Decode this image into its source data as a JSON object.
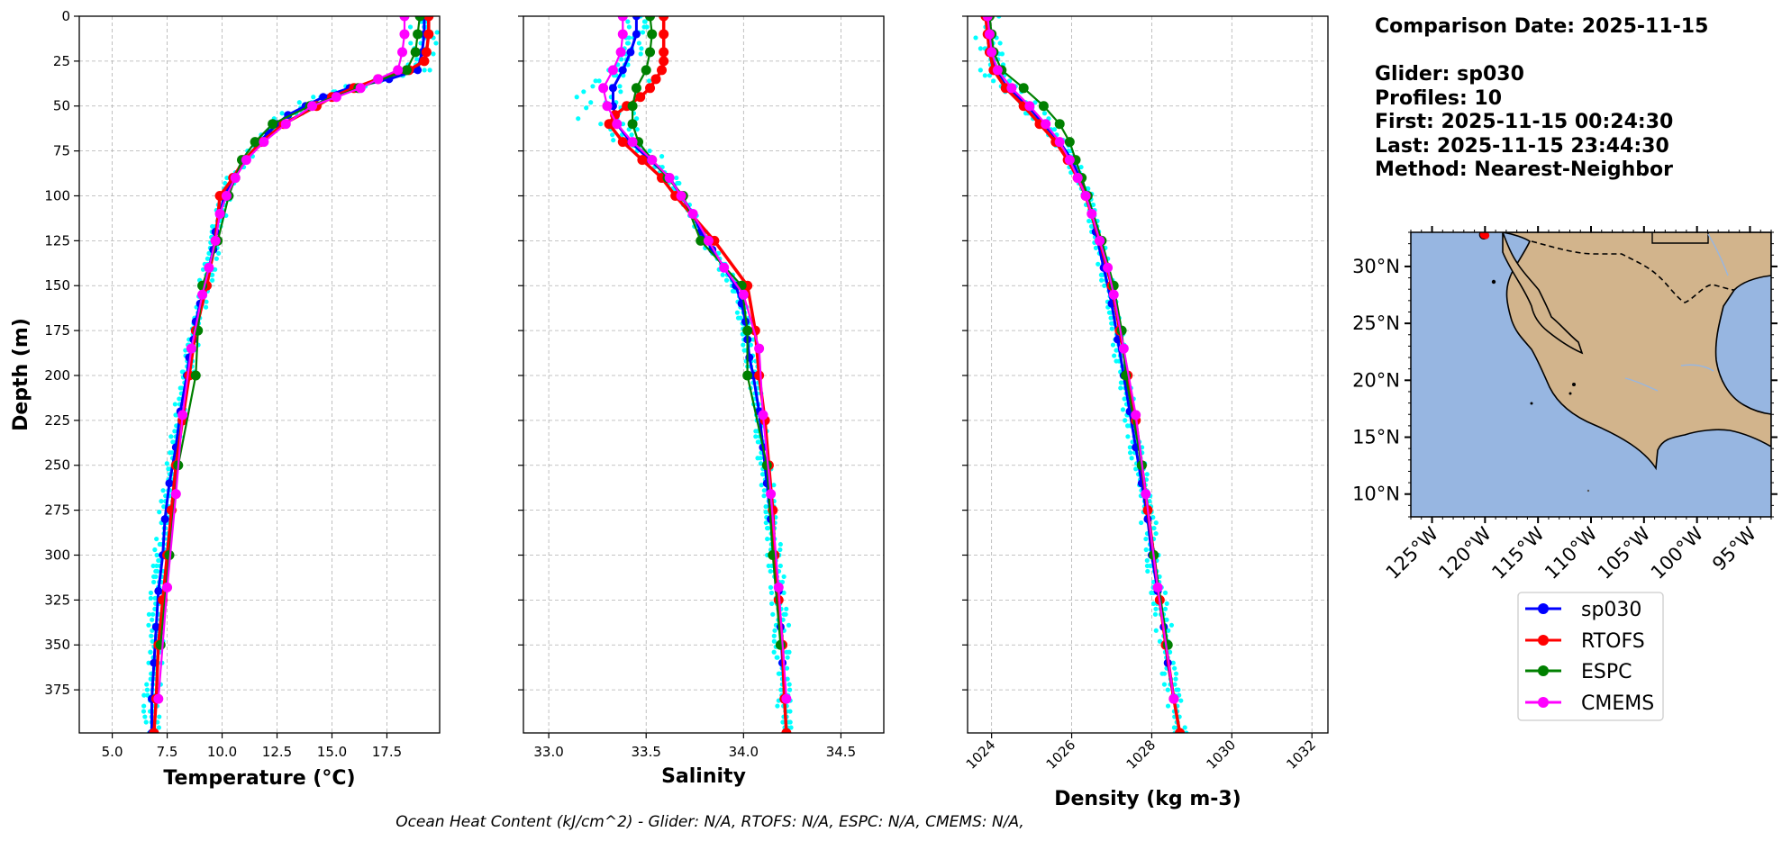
{
  "info": {
    "comparison_date": "Comparison Date: 2025-11-15",
    "glider": "Glider: sp030",
    "profiles": "Profiles: 10",
    "first": "First: 2025-11-15 00:24:30",
    "last": "Last: 2025-11-15 23:44:30",
    "method": "Method: Nearest-Neighbor"
  },
  "footer": "Ocean Heat Content (kJ/cm^2) - Glider: N/A,  RTOFS: N/A,  ESPC: N/A,  CMEMS: N/A,",
  "colors": {
    "sp030": "#0000ff",
    "RTOFS": "#ff0000",
    "ESPC": "#008000",
    "CMEMS": "#ff00ff",
    "profile_scatter": "#00ffff",
    "land": "#d2b48c",
    "ocean": "#97b6e1"
  },
  "chart_data": [
    {
      "type": "line",
      "xlabel": "Temperature (°C)",
      "ylabel": "Depth (m)",
      "xlim": [
        3.5,
        19.9
      ],
      "ylim": [
        399,
        0
      ],
      "y_inverted": true,
      "grid": true,
      "xticks": [
        "5.0",
        "7.5",
        "10.0",
        "12.5",
        "15.0",
        "17.5"
      ],
      "yticks": [
        "0",
        "25",
        "50",
        "75",
        "100",
        "125",
        "150",
        "175",
        "200",
        "225",
        "250",
        "275",
        "300",
        "325",
        "350",
        "375"
      ],
      "series": [
        {
          "name": "sp030",
          "depth": [
            0,
            10,
            20,
            30,
            35,
            40,
            45,
            50,
            55,
            60,
            65,
            70,
            80,
            90,
            100,
            110,
            120,
            130,
            140,
            150,
            160,
            170,
            180,
            190,
            200,
            220,
            240,
            260,
            280,
            300,
            320,
            340,
            360,
            380,
            399
          ],
          "values": [
            19.2,
            19.2,
            19.1,
            18.9,
            17.6,
            15.8,
            14.6,
            13.8,
            13.0,
            12.5,
            12.1,
            11.7,
            11.1,
            10.5,
            10.1,
            9.9,
            9.7,
            9.6,
            9.4,
            9.2,
            9.0,
            8.8,
            8.7,
            8.5,
            8.4,
            8.1,
            7.9,
            7.6,
            7.4,
            7.3,
            7.1,
            7.0,
            6.9,
            6.8,
            6.8
          ]
        },
        {
          "name": "RTOFS",
          "depth": [
            0,
            10,
            20,
            25,
            30,
            35,
            40,
            45,
            50,
            60,
            70,
            80,
            90,
            100,
            125,
            150,
            175,
            200,
            225,
            250,
            275,
            300,
            325,
            350,
            380,
            399
          ],
          "values": [
            19.4,
            19.4,
            19.3,
            19.2,
            18.5,
            17.1,
            16.0,
            15.0,
            14.3,
            12.8,
            11.8,
            11.0,
            10.5,
            9.9,
            9.7,
            9.3,
            8.8,
            8.5,
            8.2,
            7.9,
            7.7,
            7.5,
            7.3,
            7.1,
            7.0,
            6.9
          ]
        },
        {
          "name": "ESPC",
          "depth": [
            0,
            10,
            20,
            30,
            40,
            50,
            60,
            70,
            80,
            90,
            100,
            125,
            150,
            175,
            200,
            250,
            300,
            350
          ],
          "values": [
            19.0,
            18.9,
            18.8,
            18.4,
            16.2,
            14.0,
            12.3,
            11.5,
            10.9,
            10.6,
            10.3,
            9.8,
            9.1,
            8.9,
            8.8,
            8.0,
            7.6,
            7.2
          ]
        },
        {
          "name": "CMEMS",
          "depth": [
            0,
            10,
            20,
            30,
            35,
            40,
            45,
            50,
            60,
            70,
            80,
            90,
            100,
            110,
            125,
            140,
            155,
            185,
            222,
            266,
            318,
            380
          ],
          "values": [
            18.3,
            18.3,
            18.2,
            18.0,
            17.1,
            16.3,
            15.2,
            14.1,
            12.9,
            11.9,
            11.1,
            10.6,
            10.2,
            9.9,
            9.7,
            9.4,
            9.1,
            8.6,
            8.2,
            7.9,
            7.5,
            7.1
          ]
        }
      ]
    },
    {
      "type": "line",
      "xlabel": "Salinity",
      "xlim": [
        32.87,
        34.72
      ],
      "ylim": [
        399,
        0
      ],
      "y_inverted": true,
      "grid": true,
      "xticks": [
        "33.0",
        "33.5",
        "34.0",
        "34.5"
      ],
      "series": [
        {
          "name": "sp030",
          "depth": [
            0,
            10,
            20,
            30,
            40,
            50,
            60,
            70,
            80,
            90,
            100,
            110,
            120,
            130,
            140,
            150,
            160,
            170,
            180,
            190,
            200,
            220,
            240,
            260,
            280,
            300,
            320,
            340,
            360,
            380,
            399
          ],
          "values": [
            33.45,
            33.45,
            33.42,
            33.38,
            33.33,
            33.33,
            33.35,
            33.42,
            33.52,
            33.62,
            33.68,
            33.74,
            33.78,
            33.84,
            33.9,
            33.96,
            33.99,
            34.01,
            34.02,
            34.03,
            34.05,
            34.08,
            34.1,
            34.12,
            34.14,
            34.16,
            34.18,
            34.19,
            34.2,
            34.21,
            34.22
          ]
        },
        {
          "name": "RTOFS",
          "depth": [
            0,
            10,
            20,
            25,
            30,
            35,
            40,
            45,
            50,
            55,
            60,
            70,
            80,
            90,
            100,
            125,
            150,
            175,
            200,
            225,
            250,
            275,
            300,
            325,
            350,
            380,
            399
          ],
          "values": [
            33.59,
            33.59,
            33.59,
            33.59,
            33.58,
            33.55,
            33.52,
            33.47,
            33.4,
            33.34,
            33.31,
            33.38,
            33.48,
            33.58,
            33.65,
            33.85,
            34.02,
            34.06,
            34.08,
            34.11,
            34.13,
            34.15,
            34.16,
            34.18,
            34.2,
            34.21,
            34.22
          ]
        },
        {
          "name": "ESPC",
          "depth": [
            0,
            10,
            20,
            30,
            40,
            50,
            60,
            70,
            80,
            90,
            100,
            125,
            150,
            175,
            200,
            250,
            300,
            350
          ],
          "values": [
            33.52,
            33.53,
            33.52,
            33.5,
            33.45,
            33.43,
            33.43,
            33.46,
            33.53,
            33.61,
            33.69,
            33.78,
            33.99,
            34.02,
            34.02,
            34.12,
            34.15,
            34.19
          ]
        },
        {
          "name": "CMEMS",
          "depth": [
            0,
            10,
            20,
            30,
            40,
            50,
            60,
            70,
            80,
            90,
            100,
            110,
            125,
            140,
            155,
            185,
            222,
            266,
            318,
            380
          ],
          "values": [
            33.38,
            33.38,
            33.37,
            33.33,
            33.28,
            33.3,
            33.35,
            33.43,
            33.53,
            33.62,
            33.68,
            33.74,
            33.82,
            33.9,
            34.0,
            34.08,
            34.1,
            34.14,
            34.18,
            34.22
          ]
        }
      ]
    },
    {
      "type": "line",
      "xlabel": "Density (kg m-3)",
      "xlim": [
        1023.4,
        1032.4
      ],
      "ylim": [
        399,
        0
      ],
      "y_inverted": true,
      "grid": true,
      "xticks": [
        "1024",
        "1026",
        "1028",
        "1030",
        "1032"
      ],
      "series": [
        {
          "name": "sp030",
          "depth": [
            0,
            10,
            20,
            30,
            40,
            50,
            60,
            70,
            80,
            90,
            100,
            120,
            140,
            160,
            180,
            200,
            220,
            240,
            260,
            280,
            300,
            320,
            340,
            360,
            380,
            399
          ],
          "values": [
            1023.9,
            1023.95,
            1024.0,
            1024.1,
            1024.4,
            1024.9,
            1025.3,
            1025.7,
            1026.0,
            1026.2,
            1026.4,
            1026.6,
            1026.8,
            1027.0,
            1027.15,
            1027.3,
            1027.45,
            1027.6,
            1027.75,
            1027.9,
            1028.0,
            1028.15,
            1028.3,
            1028.4,
            1028.55,
            1028.7
          ]
        },
        {
          "name": "RTOFS",
          "depth": [
            0,
            10,
            20,
            30,
            40,
            50,
            60,
            70,
            80,
            90,
            100,
            125,
            150,
            175,
            200,
            225,
            250,
            275,
            300,
            325,
            350,
            380,
            399
          ],
          "values": [
            1023.85,
            1023.9,
            1023.95,
            1024.05,
            1024.35,
            1024.8,
            1025.2,
            1025.6,
            1025.9,
            1026.15,
            1026.35,
            1026.7,
            1027.0,
            1027.2,
            1027.4,
            1027.6,
            1027.75,
            1027.9,
            1028.05,
            1028.2,
            1028.35,
            1028.55,
            1028.7
          ]
        },
        {
          "name": "ESPC",
          "depth": [
            0,
            10,
            20,
            30,
            40,
            50,
            60,
            70,
            80,
            90,
            100,
            125,
            150,
            175,
            200,
            250,
            300,
            350
          ],
          "values": [
            1023.95,
            1024.0,
            1024.05,
            1024.25,
            1024.8,
            1025.3,
            1025.7,
            1025.95,
            1026.1,
            1026.25,
            1026.4,
            1026.75,
            1027.05,
            1027.25,
            1027.35,
            1027.75,
            1028.05,
            1028.4
          ]
        },
        {
          "name": "CMEMS",
          "depth": [
            0,
            10,
            20,
            30,
            40,
            50,
            60,
            70,
            80,
            90,
            100,
            110,
            125,
            140,
            155,
            185,
            222,
            266,
            318,
            380
          ],
          "values": [
            1023.9,
            1023.95,
            1024.0,
            1024.15,
            1024.5,
            1024.95,
            1025.35,
            1025.7,
            1025.95,
            1026.15,
            1026.35,
            1026.5,
            1026.7,
            1026.9,
            1027.05,
            1027.3,
            1027.6,
            1027.85,
            1028.15,
            1028.55
          ]
        }
      ]
    },
    {
      "type": "map",
      "lon_range": [
        -127,
        -93
      ],
      "lat_range": [
        8,
        33
      ],
      "lon_ticks": [
        "125°W",
        "120°W",
        "115°W",
        "110°W",
        "105°W",
        "100°W",
        "95°W"
      ],
      "lat_ticks": [
        "30°N",
        "25°N",
        "20°N",
        "15°N",
        "10°N"
      ],
      "marker": {
        "lon": -120.1,
        "lat": 32.8
      },
      "legend": [
        "sp030",
        "RTOFS",
        "ESPC",
        "CMEMS"
      ]
    }
  ]
}
